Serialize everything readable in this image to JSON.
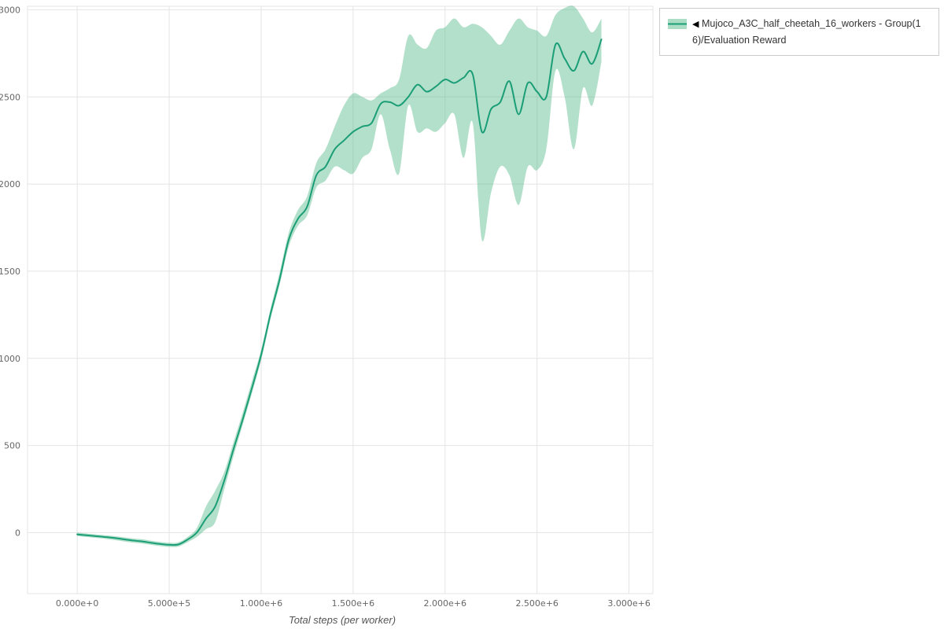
{
  "legend": {
    "marker": "◀",
    "label": "Mujoco_A3C_half_cheetah_16_workers - Group(16)/Evaluation Reward"
  },
  "axes": {
    "x_title": "Total steps (per worker)"
  },
  "colors": {
    "line": "#1b9e77",
    "band": "#57bb8a",
    "grid": "#e4e4e4",
    "tick": "#666666"
  },
  "chart_data": {
    "type": "line",
    "title": "",
    "xlabel": "Total steps (per worker)",
    "ylabel": "",
    "grid": true,
    "legend_position": "top-right",
    "series_name": "Mujoco_A3C_half_cheetah_16_workers - Group(16)/Evaluation Reward",
    "xlim": [
      -270000,
      3130000
    ],
    "ylim": [
      -350,
      3020
    ],
    "x_ticks": [
      {
        "v": 0,
        "label": "0.000e+0"
      },
      {
        "v": 500000,
        "label": "5.000e+5"
      },
      {
        "v": 1000000,
        "label": "1.000e+6"
      },
      {
        "v": 1500000,
        "label": "1.500e+6"
      },
      {
        "v": 2000000,
        "label": "2.000e+6"
      },
      {
        "v": 2500000,
        "label": "2.500e+6"
      },
      {
        "v": 3000000,
        "label": "3.000e+6"
      }
    ],
    "y_ticks": [
      {
        "v": 0,
        "label": "0"
      },
      {
        "v": 500,
        "label": "500"
      },
      {
        "v": 1000,
        "label": "1000"
      },
      {
        "v": 1500,
        "label": "1500"
      },
      {
        "v": 2000,
        "label": "2000"
      },
      {
        "v": 2500,
        "label": "2500"
      },
      {
        "v": 3000,
        "label": "3000"
      }
    ],
    "x": [
      0,
      50000,
      100000,
      150000,
      200000,
      250000,
      300000,
      350000,
      400000,
      450000,
      500000,
      550000,
      600000,
      650000,
      700000,
      750000,
      800000,
      850000,
      900000,
      950000,
      1000000,
      1050000,
      1100000,
      1150000,
      1200000,
      1250000,
      1300000,
      1350000,
      1400000,
      1450000,
      1500000,
      1550000,
      1600000,
      1650000,
      1700000,
      1750000,
      1800000,
      1850000,
      1900000,
      1950000,
      2000000,
      2050000,
      2100000,
      2150000,
      2200000,
      2250000,
      2300000,
      2350000,
      2400000,
      2450000,
      2500000,
      2550000,
      2600000,
      2650000,
      2700000,
      2750000,
      2800000,
      2850000
    ],
    "series": [
      {
        "name": "mean",
        "values": [
          -10,
          -15,
          -20,
          -25,
          -30,
          -38,
          -45,
          -50,
          -58,
          -65,
          -70,
          -68,
          -40,
          0,
          80,
          150,
          300,
          480,
          650,
          830,
          1020,
          1250,
          1450,
          1680,
          1800,
          1870,
          2050,
          2100,
          2200,
          2250,
          2300,
          2330,
          2350,
          2460,
          2470,
          2450,
          2500,
          2570,
          2530,
          2560,
          2600,
          2580,
          2610,
          2630,
          2300,
          2430,
          2470,
          2590,
          2400,
          2580,
          2530,
          2500,
          2800,
          2720,
          2650,
          2760,
          2690,
          2830
        ]
      },
      {
        "name": "band_lower",
        "values": [
          -20,
          -25,
          -30,
          -35,
          -42,
          -50,
          -57,
          -62,
          -70,
          -77,
          -82,
          -80,
          -55,
          -25,
          20,
          60,
          250,
          440,
          620,
          800,
          990,
          1220,
          1420,
          1640,
          1760,
          1820,
          1980,
          2020,
          2100,
          2080,
          2060,
          2150,
          2200,
          2400,
          2200,
          2060,
          2450,
          2300,
          2320,
          2300,
          2350,
          2400,
          2150,
          2350,
          1680,
          1950,
          2100,
          2050,
          1880,
          2100,
          2080,
          2200,
          2650,
          2500,
          2200,
          2550,
          2450,
          2700
        ]
      },
      {
        "name": "band_upper",
        "values": [
          0,
          -5,
          -10,
          -15,
          -20,
          -26,
          -33,
          -38,
          -46,
          -53,
          -58,
          -56,
          -25,
          25,
          150,
          240,
          350,
          520,
          690,
          870,
          1050,
          1280,
          1490,
          1720,
          1850,
          1930,
          2120,
          2200,
          2330,
          2450,
          2520,
          2500,
          2480,
          2520,
          2550,
          2600,
          2850,
          2800,
          2780,
          2880,
          2900,
          2950,
          2900,
          2920,
          2900,
          2850,
          2800,
          2880,
          2950,
          2900,
          2880,
          2850,
          2970,
          3010,
          3020,
          2950,
          2870,
          2950
        ]
      }
    ]
  }
}
